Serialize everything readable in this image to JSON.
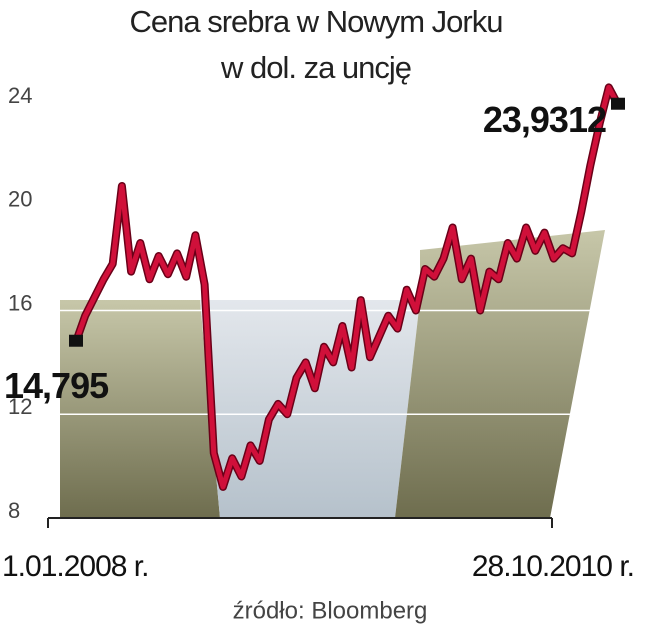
{
  "chart_data": {
    "type": "line",
    "title": "Cena srebra w Nowym Jorku",
    "subtitle": "w dol. za uncję",
    "source": "źródło: Bloomberg",
    "categories": [
      "1.01.2008 r.",
      null,
      null,
      null,
      null,
      null,
      null,
      null,
      null,
      null,
      null,
      null,
      null,
      null,
      null,
      null,
      null,
      null,
      null,
      null,
      null,
      null,
      null,
      null,
      null,
      null,
      null,
      null,
      null,
      null,
      null,
      null,
      null,
      null,
      null,
      null,
      null,
      null,
      null,
      null,
      null,
      null,
      null,
      null,
      null,
      null,
      null,
      null,
      null,
      null,
      null,
      null,
      null,
      null,
      null,
      null,
      null,
      null,
      null,
      "28.10.2010 r."
    ],
    "series": [
      {
        "name": "Cena srebra",
        "color": "#d0103a",
        "values": [
          14.795,
          15.8,
          16.5,
          17.2,
          17.8,
          20.8,
          17.5,
          18.6,
          17.2,
          18.1,
          17.4,
          18.2,
          17.3,
          18.9,
          17.0,
          10.5,
          9.2,
          10.3,
          9.6,
          10.8,
          10.2,
          11.8,
          12.4,
          12.0,
          13.4,
          14.0,
          13.0,
          14.6,
          14.0,
          15.4,
          13.8,
          16.4,
          14.2,
          15.0,
          15.8,
          15.3,
          16.8,
          16.0,
          17.6,
          17.3,
          18.0,
          19.2,
          17.2,
          18.0,
          16.0,
          17.5,
          17.2,
          18.6,
          18.0,
          19.2,
          18.3,
          19.0,
          18.0,
          18.4,
          18.2,
          19.8,
          21.6,
          23.2,
          24.6,
          23.9312
        ],
        "value_labels": [
          "14,795",
          null,
          null,
          null,
          null,
          null,
          null,
          null,
          null,
          null,
          null,
          null,
          null,
          null,
          null,
          null,
          null,
          null,
          null,
          null,
          null,
          null,
          null,
          null,
          null,
          null,
          null,
          null,
          null,
          null,
          null,
          null,
          null,
          null,
          null,
          null,
          null,
          null,
          null,
          null,
          null,
          null,
          null,
          null,
          null,
          null,
          null,
          null,
          null,
          null,
          null,
          null,
          null,
          null,
          null,
          null,
          null,
          null,
          null,
          "23,9312"
        ]
      }
    ],
    "ylim": [
      8,
      25
    ],
    "yticks": [
      8,
      12,
      16,
      20,
      24
    ],
    "grid": true
  }
}
